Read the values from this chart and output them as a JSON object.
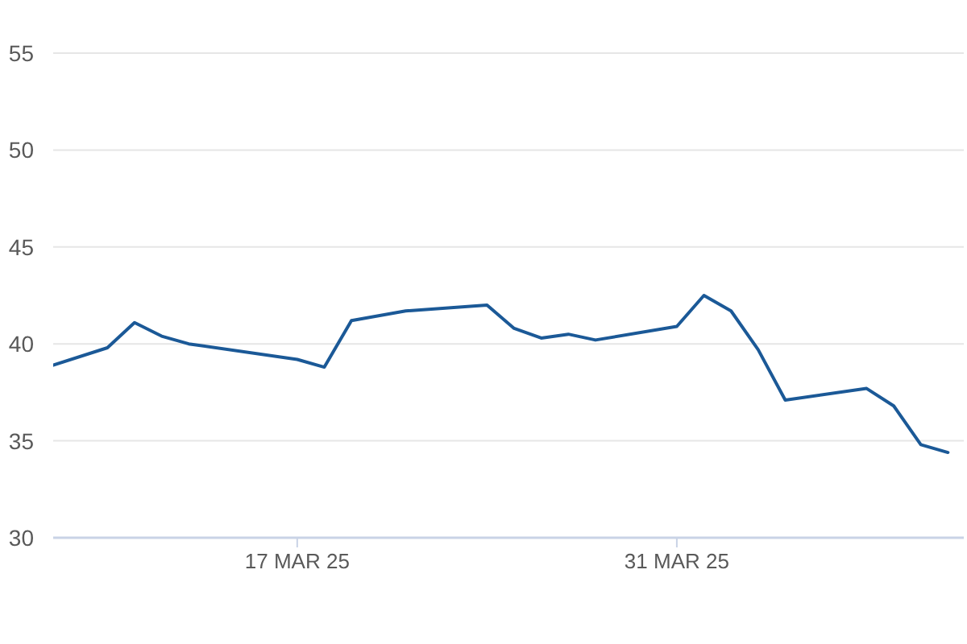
{
  "chart_data": {
    "type": "line",
    "x": [
      "--03-08",
      "--03-10",
      "--03-11",
      "--03-12",
      "--03-13",
      "--03-17",
      "--03-18",
      "--03-19",
      "--03-21",
      "--03-24",
      "--03-25",
      "--03-26",
      "--03-27",
      "--03-28",
      "--03-31",
      "--04-01",
      "--04-02",
      "--04-03",
      "--04-04",
      "--04-07",
      "--04-08",
      "--04-09",
      "--04-10"
    ],
    "series": [
      {
        "color": "#1b5997",
        "values": [
          38.9,
          39.8,
          41.1,
          40.4,
          40.0,
          39.2,
          38.8,
          41.2,
          41.7,
          42.0,
          40.8,
          40.3,
          40.5,
          40.2,
          40.9,
          42.5,
          41.7,
          39.7,
          37.1,
          37.7,
          36.8,
          34.8,
          34.4
        ]
      }
    ],
    "xlim": [
      "--03-08",
      "--04-10T14:00"
    ],
    "xticks": [
      {
        "value": "--03-17",
        "label": "17 MAR 25"
      },
      {
        "value": "--03-31",
        "label": "31 MAR 25"
      }
    ],
    "ylim": [
      30,
      55
    ],
    "yticks": [
      30,
      35,
      40,
      45,
      50,
      55
    ],
    "grid": "y",
    "line_style": "solid"
  }
}
